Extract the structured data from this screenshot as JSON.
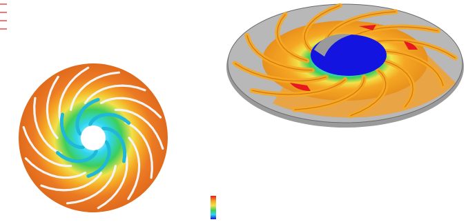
{
  "figure": {
    "background": "#ffffff",
    "colors": {
      "hot": "#ec7a24",
      "hot_dark": "#d85f16",
      "warm": "#f5a623",
      "yellow": "#f2e24a",
      "green": "#3ccf5a",
      "cyan": "#2fd6f2",
      "blue": "#1414e0",
      "red": "#e8191e",
      "gray": "#b0b0b0",
      "blade": "#f4f4f4"
    },
    "panels": [
      {
        "name": "top-view-impeller",
        "blade_count": 14,
        "inner_blade_count": 6
      },
      {
        "name": "isometric-view-impeller",
        "blade_count": 12
      }
    ],
    "colorbar": {
      "stops": [
        "#e8191e",
        "#f5a623",
        "#f2e24a",
        "#3ccf5a",
        "#2fd6f2",
        "#1414e0"
      ]
    },
    "corner_marks": {
      "color": "#e8191e",
      "count": 4
    }
  }
}
